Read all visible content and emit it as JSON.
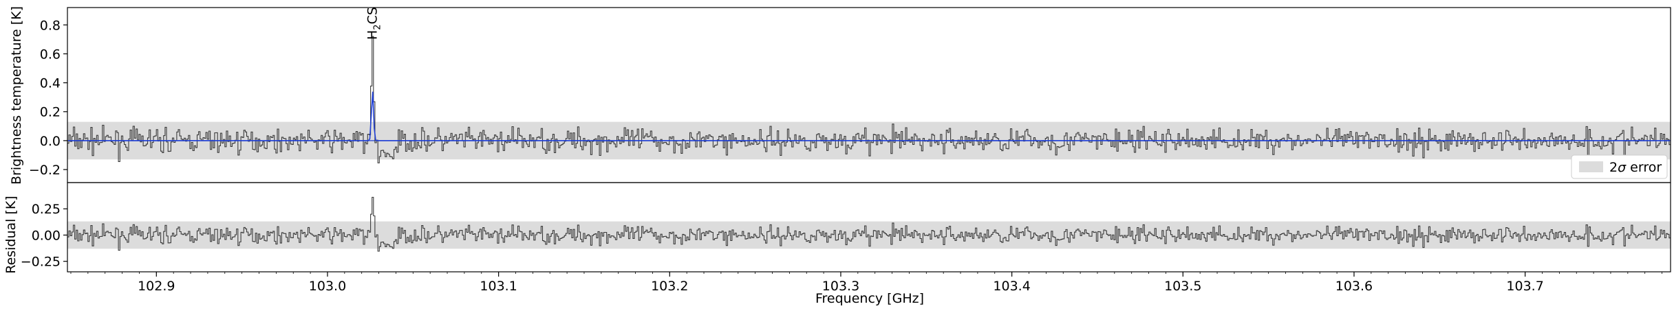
{
  "chart_data": {
    "type": "line",
    "x_range": [
      102.848,
      103.785
    ],
    "top_panel": {
      "ylabel": "Brightness temperature [K]",
      "ylim": [
        -0.29,
        0.92
      ],
      "yticks": [
        -0.2,
        0.0,
        0.2,
        0.4,
        0.6,
        0.8
      ],
      "ytick_labels": [
        "−0.2",
        "0.0",
        "0.2",
        "0.4",
        "0.6",
        "0.8"
      ],
      "error_band": [
        -0.13,
        0.13
      ],
      "legend": {
        "label_prefix": "2",
        "label_symbol": "σ",
        "label_suffix": " error",
        "location": "lower-right"
      },
      "annotation": {
        "text_main": "H",
        "text_sub": "2",
        "text_tail": "CS",
        "x": 103.026
      },
      "model_line_color": "#1f3fd6",
      "model_peak": {
        "x": 103.0263,
        "y": 0.35
      },
      "data_color": "#3a3a3a",
      "noise_rms": 0.065,
      "data_peak": {
        "x": 103.0263,
        "y": 0.72
      }
    },
    "bottom_panel": {
      "ylabel": "Residual [K]",
      "ylim": [
        -0.35,
        0.5
      ],
      "yticks": [
        -0.25,
        0.0,
        0.25
      ],
      "ytick_labels": [
        "−0.25",
        "0.00",
        "0.25"
      ],
      "error_band": [
        -0.13,
        0.13
      ],
      "residual_peak": {
        "x": 103.0263,
        "y": 0.36
      }
    },
    "xlabel": "Frequency [GHz]",
    "xticks": [
      102.9,
      103.0,
      103.1,
      103.2,
      103.3,
      103.4,
      103.5,
      103.6,
      103.7
    ],
    "xtick_labels": [
      "102.9",
      "103.0",
      "103.1",
      "103.2",
      "103.3",
      "103.4",
      "103.5",
      "103.6",
      "103.7"
    ],
    "band_color": "#dcdcdc",
    "grid": false
  }
}
